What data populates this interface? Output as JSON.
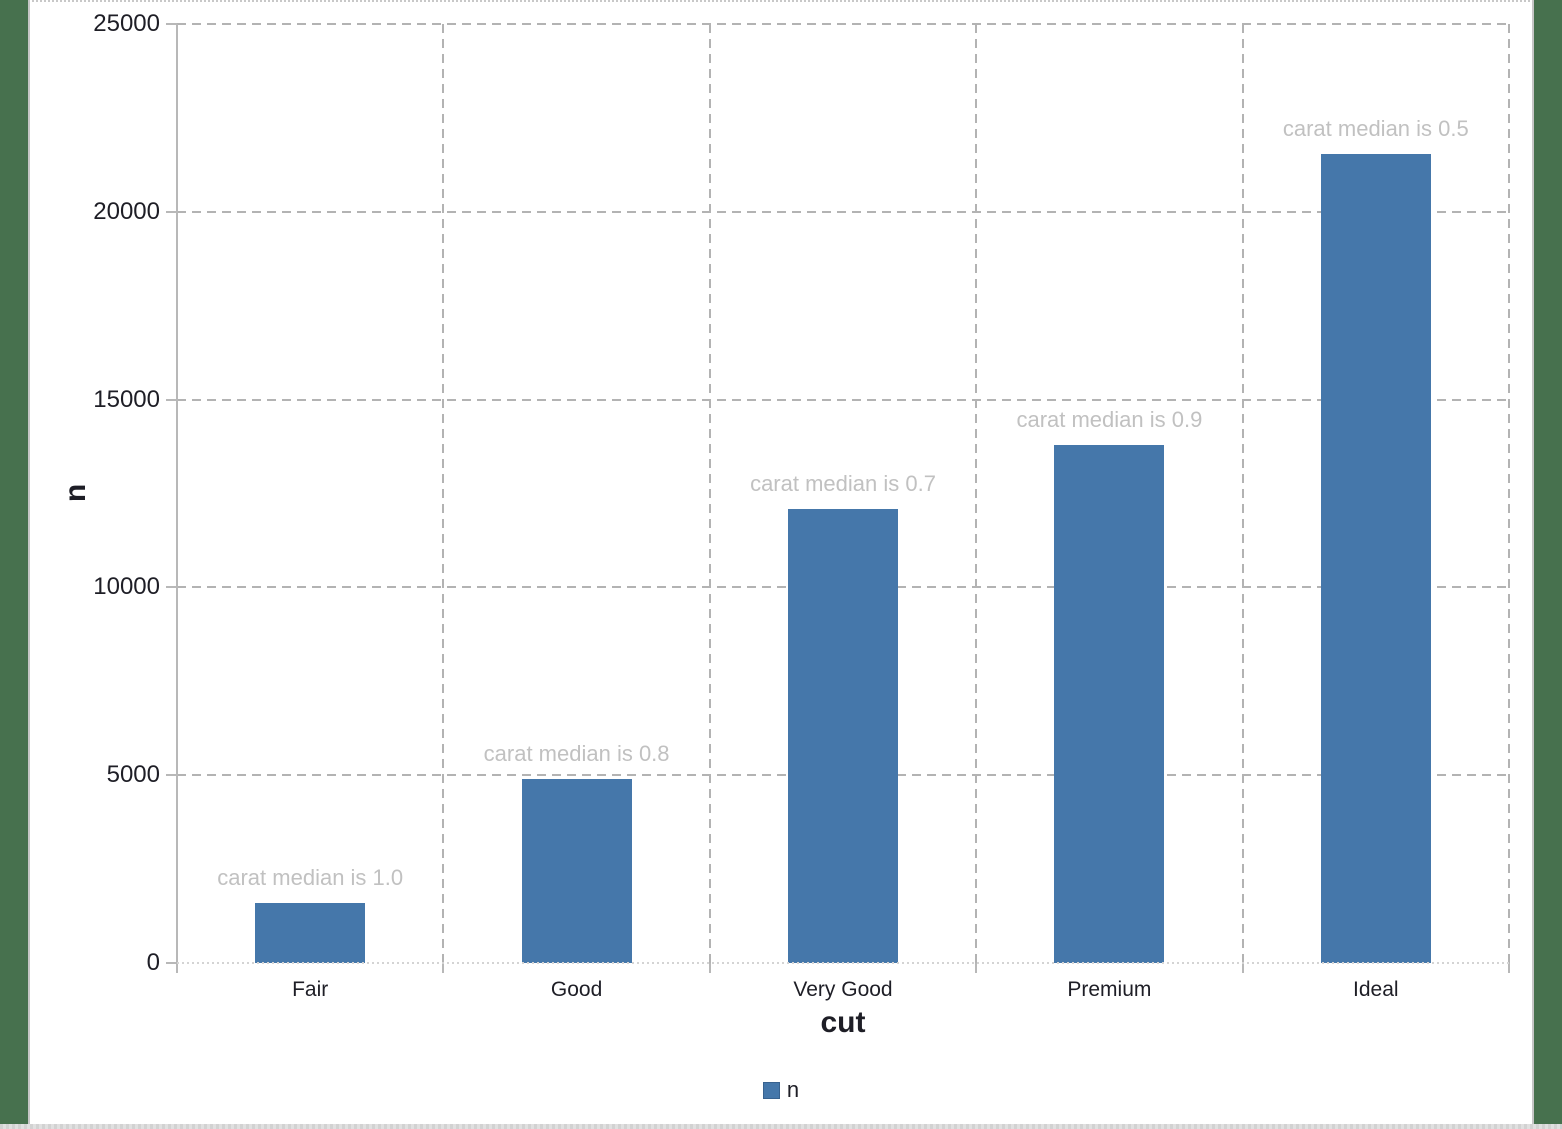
{
  "window": {
    "desktop_color": "#47714e",
    "background": "#ffffff"
  },
  "chart_data": {
    "type": "bar",
    "title": "",
    "categories": [
      "Fair",
      "Good",
      "Very Good",
      "Premium",
      "Ideal"
    ],
    "values": [
      1610,
      4906,
      12082,
      13791,
      21551
    ],
    "annotations": [
      "carat median is 1.0",
      "carat median is 0.8",
      "carat median is 0.7",
      "carat median is 0.9",
      "carat median is 0.5"
    ],
    "xlabel": "cut",
    "ylabel": "n",
    "ylim": [
      0,
      25000
    ],
    "yticks": [
      0,
      5000,
      10000,
      15000,
      20000,
      25000
    ],
    "grid": "dashed horizontal and vertical, light gray",
    "legend": {
      "position": "bottom-center",
      "entries": [
        {
          "label": "n",
          "color": "#4577aa"
        }
      ]
    },
    "bar_color": "#4577aa",
    "annotation_color": "#c1c1c1",
    "gridline_color": "#b3b3b3",
    "axis_text_color": "#1e1e26"
  }
}
